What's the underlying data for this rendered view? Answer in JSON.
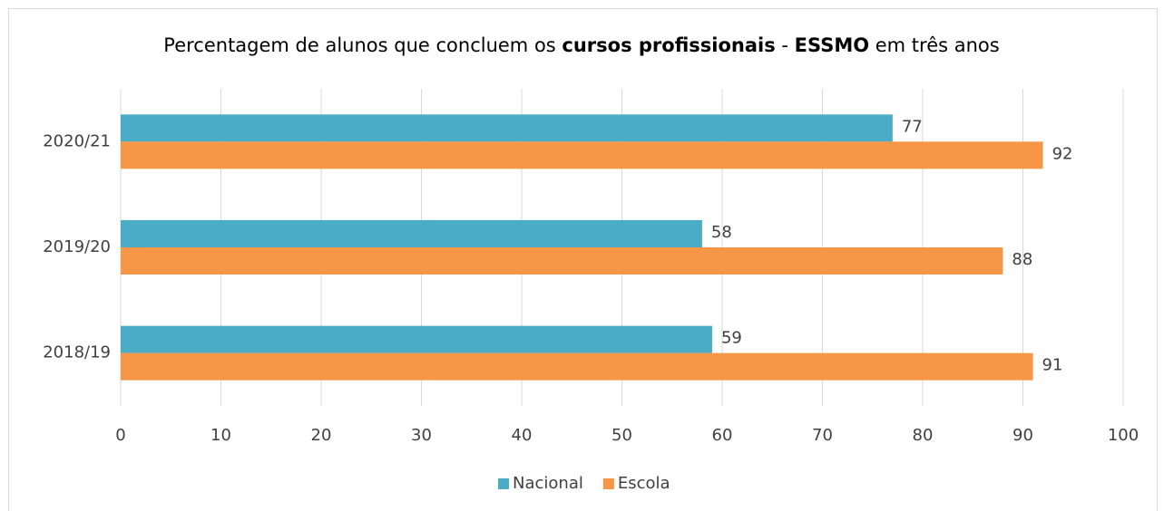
{
  "chart_data": {
    "type": "bar",
    "orientation": "horizontal",
    "title": [
      "Percentagem de alunos que concluem os ",
      "cursos profissionais",
      " - ",
      "ESSMO",
      " em três anos"
    ],
    "title_bold": [
      false,
      true,
      false,
      true,
      false
    ],
    "categories": [
      "2018/19",
      "2019/20",
      "2020/21"
    ],
    "series": [
      {
        "name": "Nacional",
        "color": "#4bacc6",
        "values": [
          59,
          58,
          77
        ]
      },
      {
        "name": "Escola",
        "color": "#f79646",
        "values": [
          91,
          88,
          92
        ]
      }
    ],
    "xlim": [
      0,
      100
    ],
    "xticks": [
      0,
      10,
      20,
      30,
      40,
      50,
      60,
      70,
      80,
      90,
      100
    ],
    "grid": true,
    "legend": "bottom"
  }
}
